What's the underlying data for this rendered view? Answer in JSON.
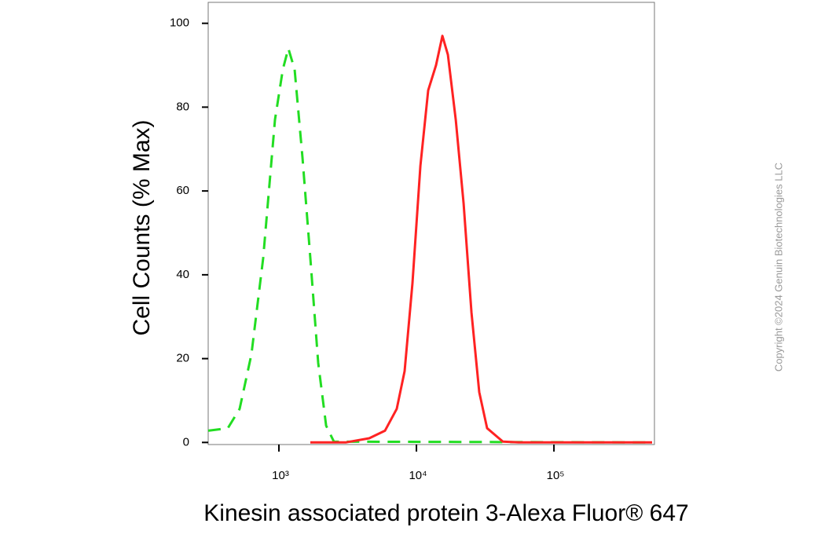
{
  "chart_data": {
    "type": "line",
    "x_label": "Kinesin associated protein 3-Alexa Fluor® 647",
    "y_label": "Cell Counts (% Max)",
    "copyright": "Copyright ©2024 Genuin Biotechnologies LLC",
    "x_scale": "log",
    "xlim": [
      306,
      538000
    ],
    "ylim": [
      -0.5,
      105
    ],
    "xticks": [
      {
        "value": 1000,
        "label": "10³"
      },
      {
        "value": 10000,
        "label": "10⁴"
      },
      {
        "value": 100000,
        "label": "10⁵"
      }
    ],
    "yticks": [
      0,
      20,
      40,
      60,
      80,
      100
    ],
    "series": [
      {
        "color": "#22dd22",
        "dashed": true,
        "x": [
          306,
          425,
          518,
          631,
          769,
          936,
          1068,
          1171,
          1301,
          1484,
          1693,
          1931,
          2203,
          2512,
          517000
        ],
        "values": [
          2.8,
          3.4,
          8,
          21,
          44,
          77,
          89,
          94,
          89,
          68,
          44,
          19,
          4,
          0.2,
          0
        ]
      },
      {
        "color": "#ff2222",
        "dashed": false,
        "x": [
          1693,
          3060,
          4540,
          5907,
          7197,
          8204,
          9354,
          10690,
          12180,
          13890,
          15440,
          16940,
          19310,
          22030,
          25120,
          28640,
          32660,
          42530,
          55330,
          517000
        ],
        "values": [
          0,
          0,
          1,
          2.8,
          8,
          17,
          38,
          66,
          84,
          90,
          97,
          92.5,
          77,
          57,
          31,
          12,
          3.4,
          0.2,
          0,
          0
        ]
      }
    ]
  }
}
